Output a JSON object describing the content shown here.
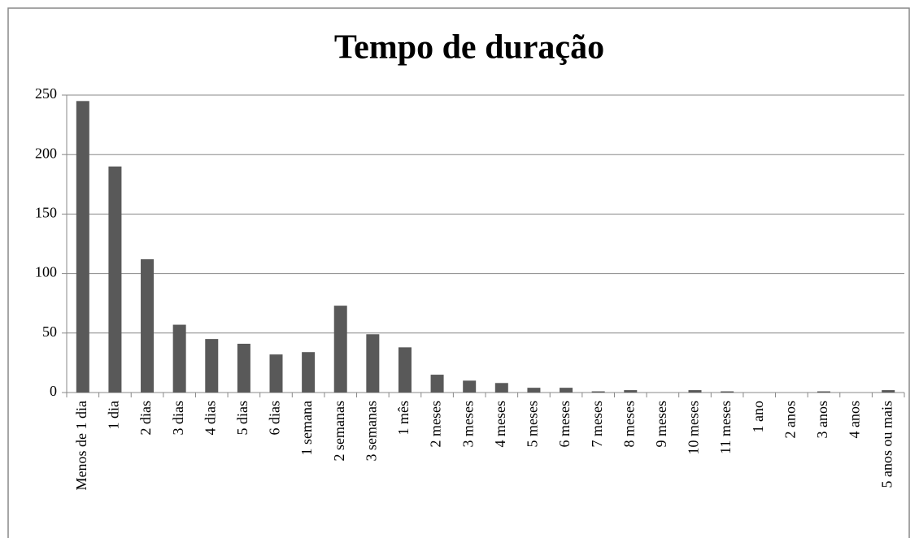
{
  "chart_data": {
    "type": "bar",
    "title": "Tempo de duração",
    "categories": [
      "Menos de 1 dia",
      "1 dia",
      "2 dias",
      "3 dias",
      "4 dias",
      "5 dias",
      "6 dias",
      "1 semana",
      "2 semanas",
      "3 semanas",
      "1 mês",
      "2 meses",
      "3 meses",
      "4 meses",
      "5 meses",
      "6 meses",
      "7 meses",
      "8 meses",
      "9 meses",
      "10 meses",
      "11 meses",
      "1 ano",
      "2 anos",
      "3 anos",
      "4 anos",
      "5 anos ou mais"
    ],
    "values": [
      245,
      190,
      112,
      57,
      45,
      41,
      32,
      34,
      73,
      49,
      38,
      15,
      10,
      8,
      4,
      4,
      1,
      2,
      0,
      2,
      1,
      0,
      0,
      1,
      0,
      2
    ],
    "color": "#595959",
    "ylim": [
      0,
      250
    ],
    "yticks": [
      0,
      50,
      100,
      150,
      200,
      250
    ],
    "grid": true
  }
}
